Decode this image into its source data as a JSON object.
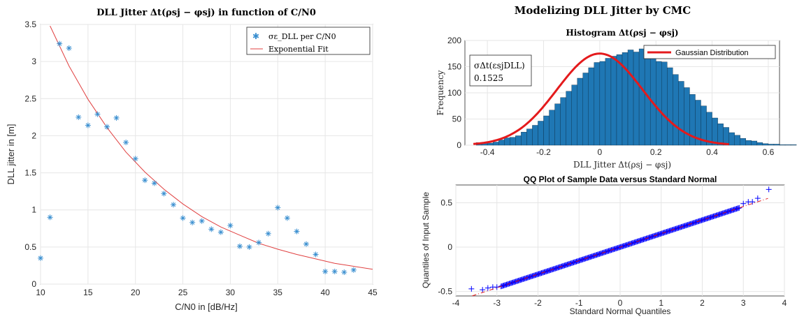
{
  "chart_data": [
    {
      "type": "scatter",
      "title": "DLL Jitter Δt(ρsj − φsj) in function of C/N0",
      "xlabel": "C/N0 in [dB/Hz]",
      "ylabel": "DLL jitter in [m]",
      "xlim": [
        10,
        45
      ],
      "ylim": [
        0,
        3.5
      ],
      "xticks": [
        "10",
        "15",
        "20",
        "25",
        "30",
        "35",
        "40",
        "45"
      ],
      "yticks": [
        "0",
        "0.5",
        "1",
        "1.5",
        "2",
        "2.5",
        "3",
        "3.5"
      ],
      "grid": true,
      "legend": {
        "position": "top-right",
        "entries": [
          "σε_DLL per C/N0",
          "Exponential Fit"
        ]
      },
      "series": [
        {
          "name": "σε_DLL per C/N0",
          "marker": "asterisk",
          "color": "#3A8FD0",
          "points": [
            [
              10,
              0.35
            ],
            [
              11,
              0.9
            ],
            [
              12,
              3.24
            ],
            [
              13,
              3.18
            ],
            [
              14,
              2.25
            ],
            [
              15,
              2.14
            ],
            [
              16,
              2.29
            ],
            [
              17,
              2.12
            ],
            [
              18,
              2.24
            ],
            [
              19,
              1.91
            ],
            [
              20,
              1.69
            ],
            [
              21,
              1.4
            ],
            [
              22,
              1.36
            ],
            [
              23,
              1.22
            ],
            [
              24,
              1.07
            ],
            [
              25,
              0.89
            ],
            [
              26,
              0.83
            ],
            [
              27,
              0.85
            ],
            [
              28,
              0.74
            ],
            [
              29,
              0.7
            ],
            [
              30,
              0.79
            ],
            [
              31,
              0.51
            ],
            [
              32,
              0.5
            ],
            [
              33,
              0.56
            ],
            [
              34,
              0.68
            ],
            [
              35,
              1.03
            ],
            [
              36,
              0.89
            ],
            [
              37,
              0.71
            ],
            [
              38,
              0.54
            ],
            [
              39,
              0.4
            ],
            [
              40,
              0.17
            ],
            [
              41,
              0.17
            ],
            [
              42,
              0.16
            ],
            [
              43,
              0.19
            ]
          ]
        },
        {
          "name": "Exponential Fit",
          "color": "#E04040",
          "points": [
            [
              11,
              3.48
            ],
            [
              13,
              2.94
            ],
            [
              15,
              2.49
            ],
            [
              17,
              2.11
            ],
            [
              19,
              1.78
            ],
            [
              21,
              1.51
            ],
            [
              23,
              1.28
            ],
            [
              25,
              1.08
            ],
            [
              27,
              0.91
            ],
            [
              29,
              0.77
            ],
            [
              31,
              0.66
            ],
            [
              33,
              0.55
            ],
            [
              35,
              0.47
            ],
            [
              37,
              0.4
            ],
            [
              39,
              0.34
            ],
            [
              41,
              0.28
            ],
            [
              43,
              0.24
            ],
            [
              45,
              0.2
            ]
          ]
        }
      ]
    },
    {
      "type": "bar",
      "suptitle": "Modelizing DLL Jitter by CMC",
      "title": "Histogram Δt(ρsj − φsj)",
      "xlabel": "DLL Jitter Δt(ρsj − φsj)",
      "ylabel": "Frequency",
      "xlim": [
        -0.48,
        0.64
      ],
      "ylim": [
        0,
        200
      ],
      "xticks": [
        "-0.4",
        "-0.2",
        "0",
        "0.2",
        "0.4",
        "0.6"
      ],
      "yticks": [
        "0",
        "50",
        "100",
        "150",
        "200"
      ],
      "grid": true,
      "bar_color": "#1F77B4",
      "legend": {
        "position": "top-right",
        "entries": [
          "Gaussian Distribution"
        ]
      },
      "annotation": {
        "label": "σΔt(εsjDLL)",
        "value": "0.1525"
      },
      "bins": {
        "start": -0.44,
        "width": 0.02
      },
      "values": [
        5,
        4,
        4,
        6,
        10,
        14,
        15,
        18,
        25,
        31,
        38,
        46,
        56,
        67,
        79,
        91,
        103,
        115,
        128,
        138,
        148,
        158,
        160,
        166,
        170,
        173,
        177,
        182,
        178,
        184,
        172,
        170,
        160,
        159,
        148,
        135,
        122,
        110,
        97,
        86,
        75,
        63,
        52,
        41,
        34,
        24,
        19,
        13,
        9,
        8,
        5,
        3,
        2,
        2,
        1,
        1,
        1,
        0,
        0,
        0,
        0,
        0,
        0,
        0,
        0,
        0,
        0,
        0,
        0,
        0,
        0,
        1
      ],
      "series": [
        {
          "name": "Gaussian Distribution",
          "color": "#E41A1C",
          "mean": 0.0,
          "std": 0.1525,
          "peak": 175,
          "x_range": [
            -0.45,
            0.46
          ]
        }
      ]
    },
    {
      "type": "scatter",
      "title": "QQ Plot of Sample Data versus Standard Normal",
      "xlabel": "Standard Normal Quantiles",
      "ylabel": "Quantiles of Input Sample",
      "xlim": [
        -4,
        4
      ],
      "ylim": [
        -0.55,
        0.7
      ],
      "xticks": [
        "-4",
        "-3",
        "-2",
        "-1",
        "0",
        "1",
        "2",
        "3",
        "4"
      ],
      "yticks": [
        "-0.5",
        "0",
        "0.5"
      ],
      "grid": true,
      "series": [
        {
          "name": "",
          "marker": "plus",
          "color": "#0000FF",
          "slope": 0.1525,
          "intercept": 0.0,
          "x_range": [
            -3.6,
            3.6
          ]
        },
        {
          "name": "",
          "line": "dashdot",
          "color": "#E41A1C",
          "slope": 0.1525,
          "intercept": 0.0,
          "x_range": [
            -3.6,
            3.6
          ]
        }
      ],
      "outliers": [
        [
          -3.62,
          -0.47
        ],
        [
          -3.35,
          -0.48
        ],
        [
          -3.22,
          -0.46
        ],
        [
          -3.1,
          -0.45
        ],
        [
          -3.0,
          -0.45
        ],
        [
          3.0,
          0.49
        ],
        [
          3.12,
          0.51
        ],
        [
          3.22,
          0.51
        ],
        [
          3.35,
          0.55
        ],
        [
          3.62,
          0.65
        ]
      ]
    }
  ]
}
